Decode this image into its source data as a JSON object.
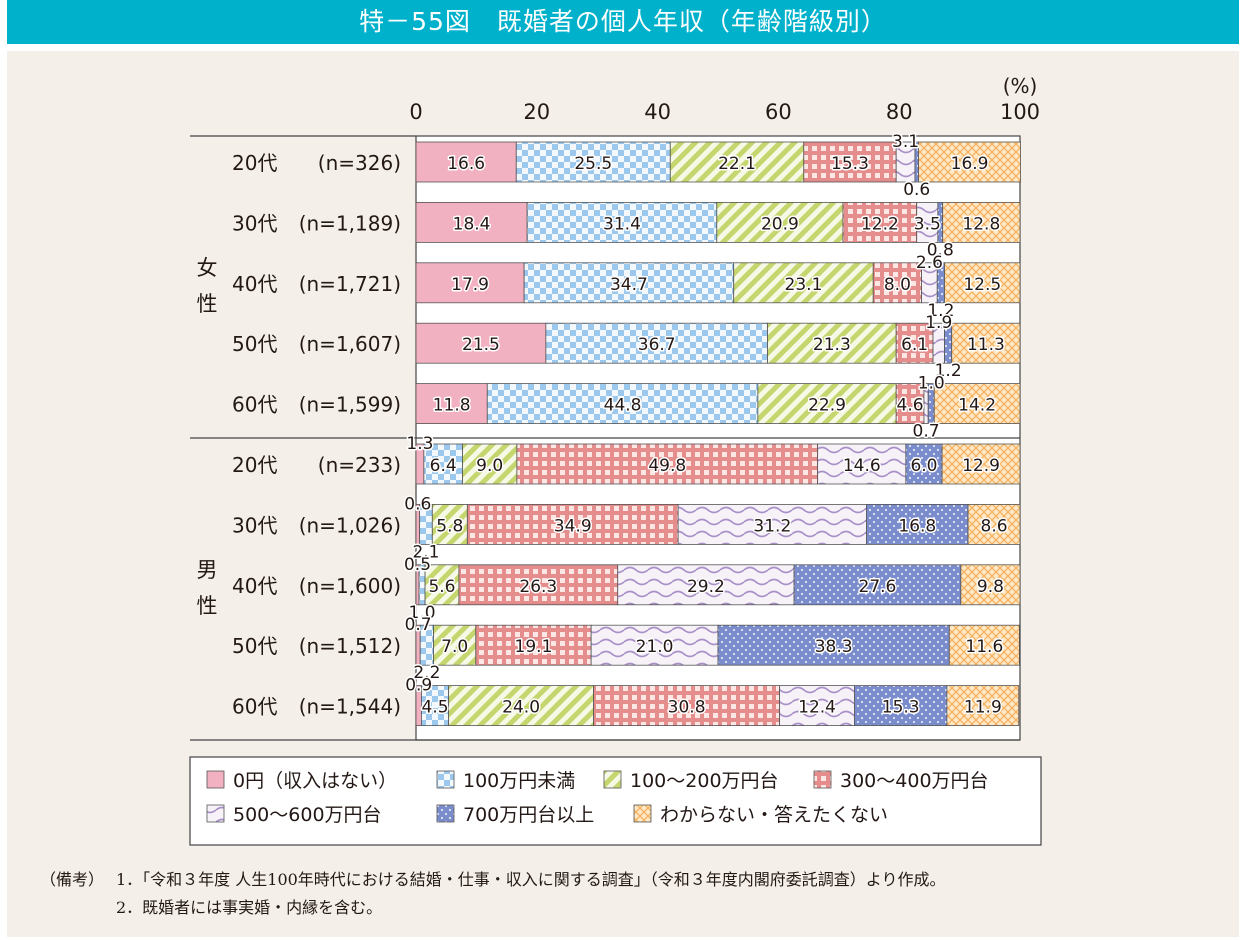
{
  "header": {
    "title": "特－55図　既婚者の個人年収（年齢階級別）"
  },
  "chart_data": {
    "type": "bar",
    "orientation": "horizontal-stacked-100",
    "title": "特－55図　既婚者の個人年収（年齢階級別）",
    "xlabel": "(%)",
    "xlim": [
      0,
      100
    ],
    "xticks": [
      "0",
      "20",
      "40",
      "60",
      "80",
      "100"
    ],
    "grid": false,
    "legend_position": "bottom",
    "legend": [
      {
        "key": "zero",
        "label": "0円（収入はない）",
        "color": "#f2b1c1",
        "pattern": "solid"
      },
      {
        "key": "under100",
        "label": "100万円未満",
        "color": "#9bc8ec",
        "pattern": "checker"
      },
      {
        "key": "r100_200",
        "label": "100～200万円台",
        "color": "#c5d66f",
        "pattern": "diagonal"
      },
      {
        "key": "r300_400",
        "label": "300～400万円台",
        "color": "#e58c8c",
        "pattern": "grid"
      },
      {
        "key": "r500_600",
        "label": "500～600万円台",
        "color": "#a88fc7",
        "pattern": "wave"
      },
      {
        "key": "over700",
        "label": "700万円台以上",
        "color": "#7a8ccb",
        "pattern": "dots"
      },
      {
        "key": "unknown",
        "label": "わからない・答えたくない",
        "color": "#f7c27e",
        "pattern": "crosshatch"
      }
    ],
    "groups": [
      {
        "name_chars": [
          "女",
          "性"
        ],
        "name": "女性",
        "rows": [
          {
            "age": "20代",
            "n": "(n=326)",
            "values": [
              16.6,
              25.5,
              22.1,
              15.3,
              3.1,
              0.6,
              16.9
            ]
          },
          {
            "age": "30代",
            "n": "(n=1,189)",
            "values": [
              18.4,
              31.4,
              20.9,
              12.2,
              3.5,
              0.8,
              12.8
            ]
          },
          {
            "age": "40代",
            "n": "(n=1,721)",
            "values": [
              17.9,
              34.7,
              23.1,
              8.0,
              2.6,
              1.2,
              12.5
            ]
          },
          {
            "age": "50代",
            "n": "(n=1,607)",
            "values": [
              21.5,
              36.7,
              21.3,
              6.1,
              1.9,
              1.2,
              11.3
            ]
          },
          {
            "age": "60代",
            "n": "(n=1,599)",
            "values": [
              11.8,
              44.8,
              22.9,
              4.6,
              0.7,
              1.0,
              14.2
            ]
          }
        ]
      },
      {
        "name_chars": [
          "男",
          "性"
        ],
        "name": "男性",
        "rows": [
          {
            "age": "20代",
            "n": "(n=233)",
            "values": [
              1.3,
              6.4,
              9.0,
              49.8,
              14.6,
              6.0,
              12.9
            ]
          },
          {
            "age": "30代",
            "n": "(n=1,026)",
            "values": [
              0.6,
              2.1,
              5.8,
              34.9,
              31.2,
              16.8,
              8.6
            ]
          },
          {
            "age": "40代",
            "n": "(n=1,600)",
            "values": [
              0.5,
              1.0,
              5.6,
              26.3,
              29.2,
              27.6,
              9.8
            ]
          },
          {
            "age": "50代",
            "n": "(n=1,512)",
            "values": [
              0.7,
              2.2,
              7.0,
              19.1,
              21.0,
              38.3,
              11.6
            ]
          },
          {
            "age": "60代",
            "n": "(n=1,544)",
            "values": [
              0.9,
              4.5,
              24.0,
              30.8,
              12.4,
              15.3,
              11.9
            ]
          }
        ]
      }
    ]
  },
  "notes": {
    "label": "（備考）",
    "items": [
      "1．「令和３年度 人生100年時代における結婚・仕事・収入に関する調査」（令和３年度内閣府委託調査）より作成。",
      "2．既婚者には事実婚・内縁を含む。"
    ]
  }
}
